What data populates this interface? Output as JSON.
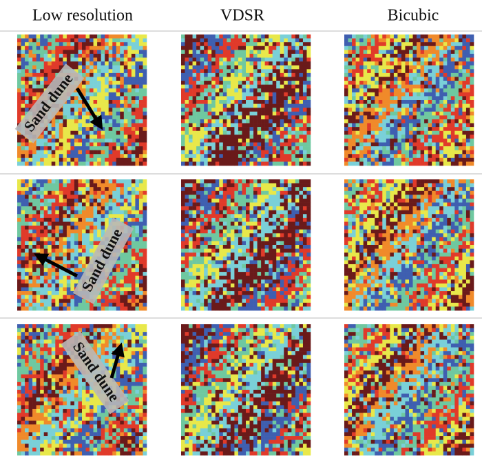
{
  "columns": [
    "Low resolution",
    "VDSR",
    "Bicubic"
  ],
  "rows": [
    {
      "annotation": "Sand dune"
    },
    {
      "annotation": "Sand dune"
    },
    {
      "annotation": "Sand dune"
    }
  ]
}
